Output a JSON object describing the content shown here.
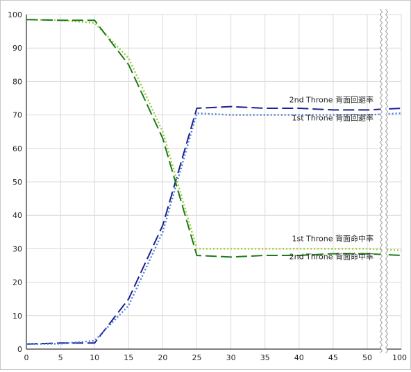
{
  "chart_data": {
    "type": "line",
    "title": "",
    "xlabel": "",
    "ylabel": "",
    "xlim": [
      0,
      100
    ],
    "ylim": [
      0,
      100
    ],
    "x_ticks": [
      "0",
      "5",
      "10",
      "15",
      "20",
      "25",
      "30",
      "35",
      "40",
      "45",
      "50",
      "100"
    ],
    "y_ticks": [
      "0",
      "10",
      "20",
      "30",
      "40",
      "50",
      "60",
      "70",
      "80",
      "90",
      "100"
    ],
    "grid": true,
    "axis_break": "between 50 and 100",
    "series": [
      {
        "name": "2nd Throne 背面回避率",
        "color": "#1f1f8f",
        "dash": "long-dash",
        "points": [
          [
            0,
            1.5
          ],
          [
            5,
            1.8
          ],
          [
            10,
            1.8
          ],
          [
            15,
            15
          ],
          [
            20,
            37
          ],
          [
            25,
            72
          ],
          [
            30,
            72.5
          ],
          [
            35,
            72
          ],
          [
            40,
            72
          ],
          [
            45,
            71.5
          ],
          [
            50,
            71.5
          ],
          [
            100,
            72
          ]
        ]
      },
      {
        "name": "1st Throne 背面回避率",
        "color": "#4a7fd6",
        "dash": "dotted",
        "points": [
          [
            0,
            1.5
          ],
          [
            5,
            1.6
          ],
          [
            10,
            2.5
          ],
          [
            15,
            13
          ],
          [
            20,
            35
          ],
          [
            25,
            70.5
          ],
          [
            30,
            70
          ],
          [
            35,
            70
          ],
          [
            40,
            70
          ],
          [
            45,
            70
          ],
          [
            50,
            70
          ],
          [
            100,
            70.5
          ]
        ]
      },
      {
        "name": "1st Throne 背面命中率",
        "color": "#9acd32",
        "dash": "dotted",
        "points": [
          [
            0,
            98.5
          ],
          [
            5,
            98.3
          ],
          [
            10,
            97.5
          ],
          [
            15,
            87
          ],
          [
            20,
            65
          ],
          [
            25,
            30
          ],
          [
            30,
            30
          ],
          [
            35,
            30
          ],
          [
            40,
            30
          ],
          [
            45,
            30
          ],
          [
            50,
            30
          ],
          [
            100,
            29.5
          ]
        ]
      },
      {
        "name": "2nd Throne 背面命中率",
        "color": "#1a7a1a",
        "dash": "long-dash",
        "points": [
          [
            0,
            98.5
          ],
          [
            5,
            98.3
          ],
          [
            10,
            98.3
          ],
          [
            15,
            85
          ],
          [
            20,
            63
          ],
          [
            25,
            28
          ],
          [
            30,
            27.5
          ],
          [
            35,
            28
          ],
          [
            40,
            28
          ],
          [
            45,
            28.5
          ],
          [
            50,
            28.5
          ],
          [
            100,
            28
          ]
        ]
      }
    ]
  }
}
